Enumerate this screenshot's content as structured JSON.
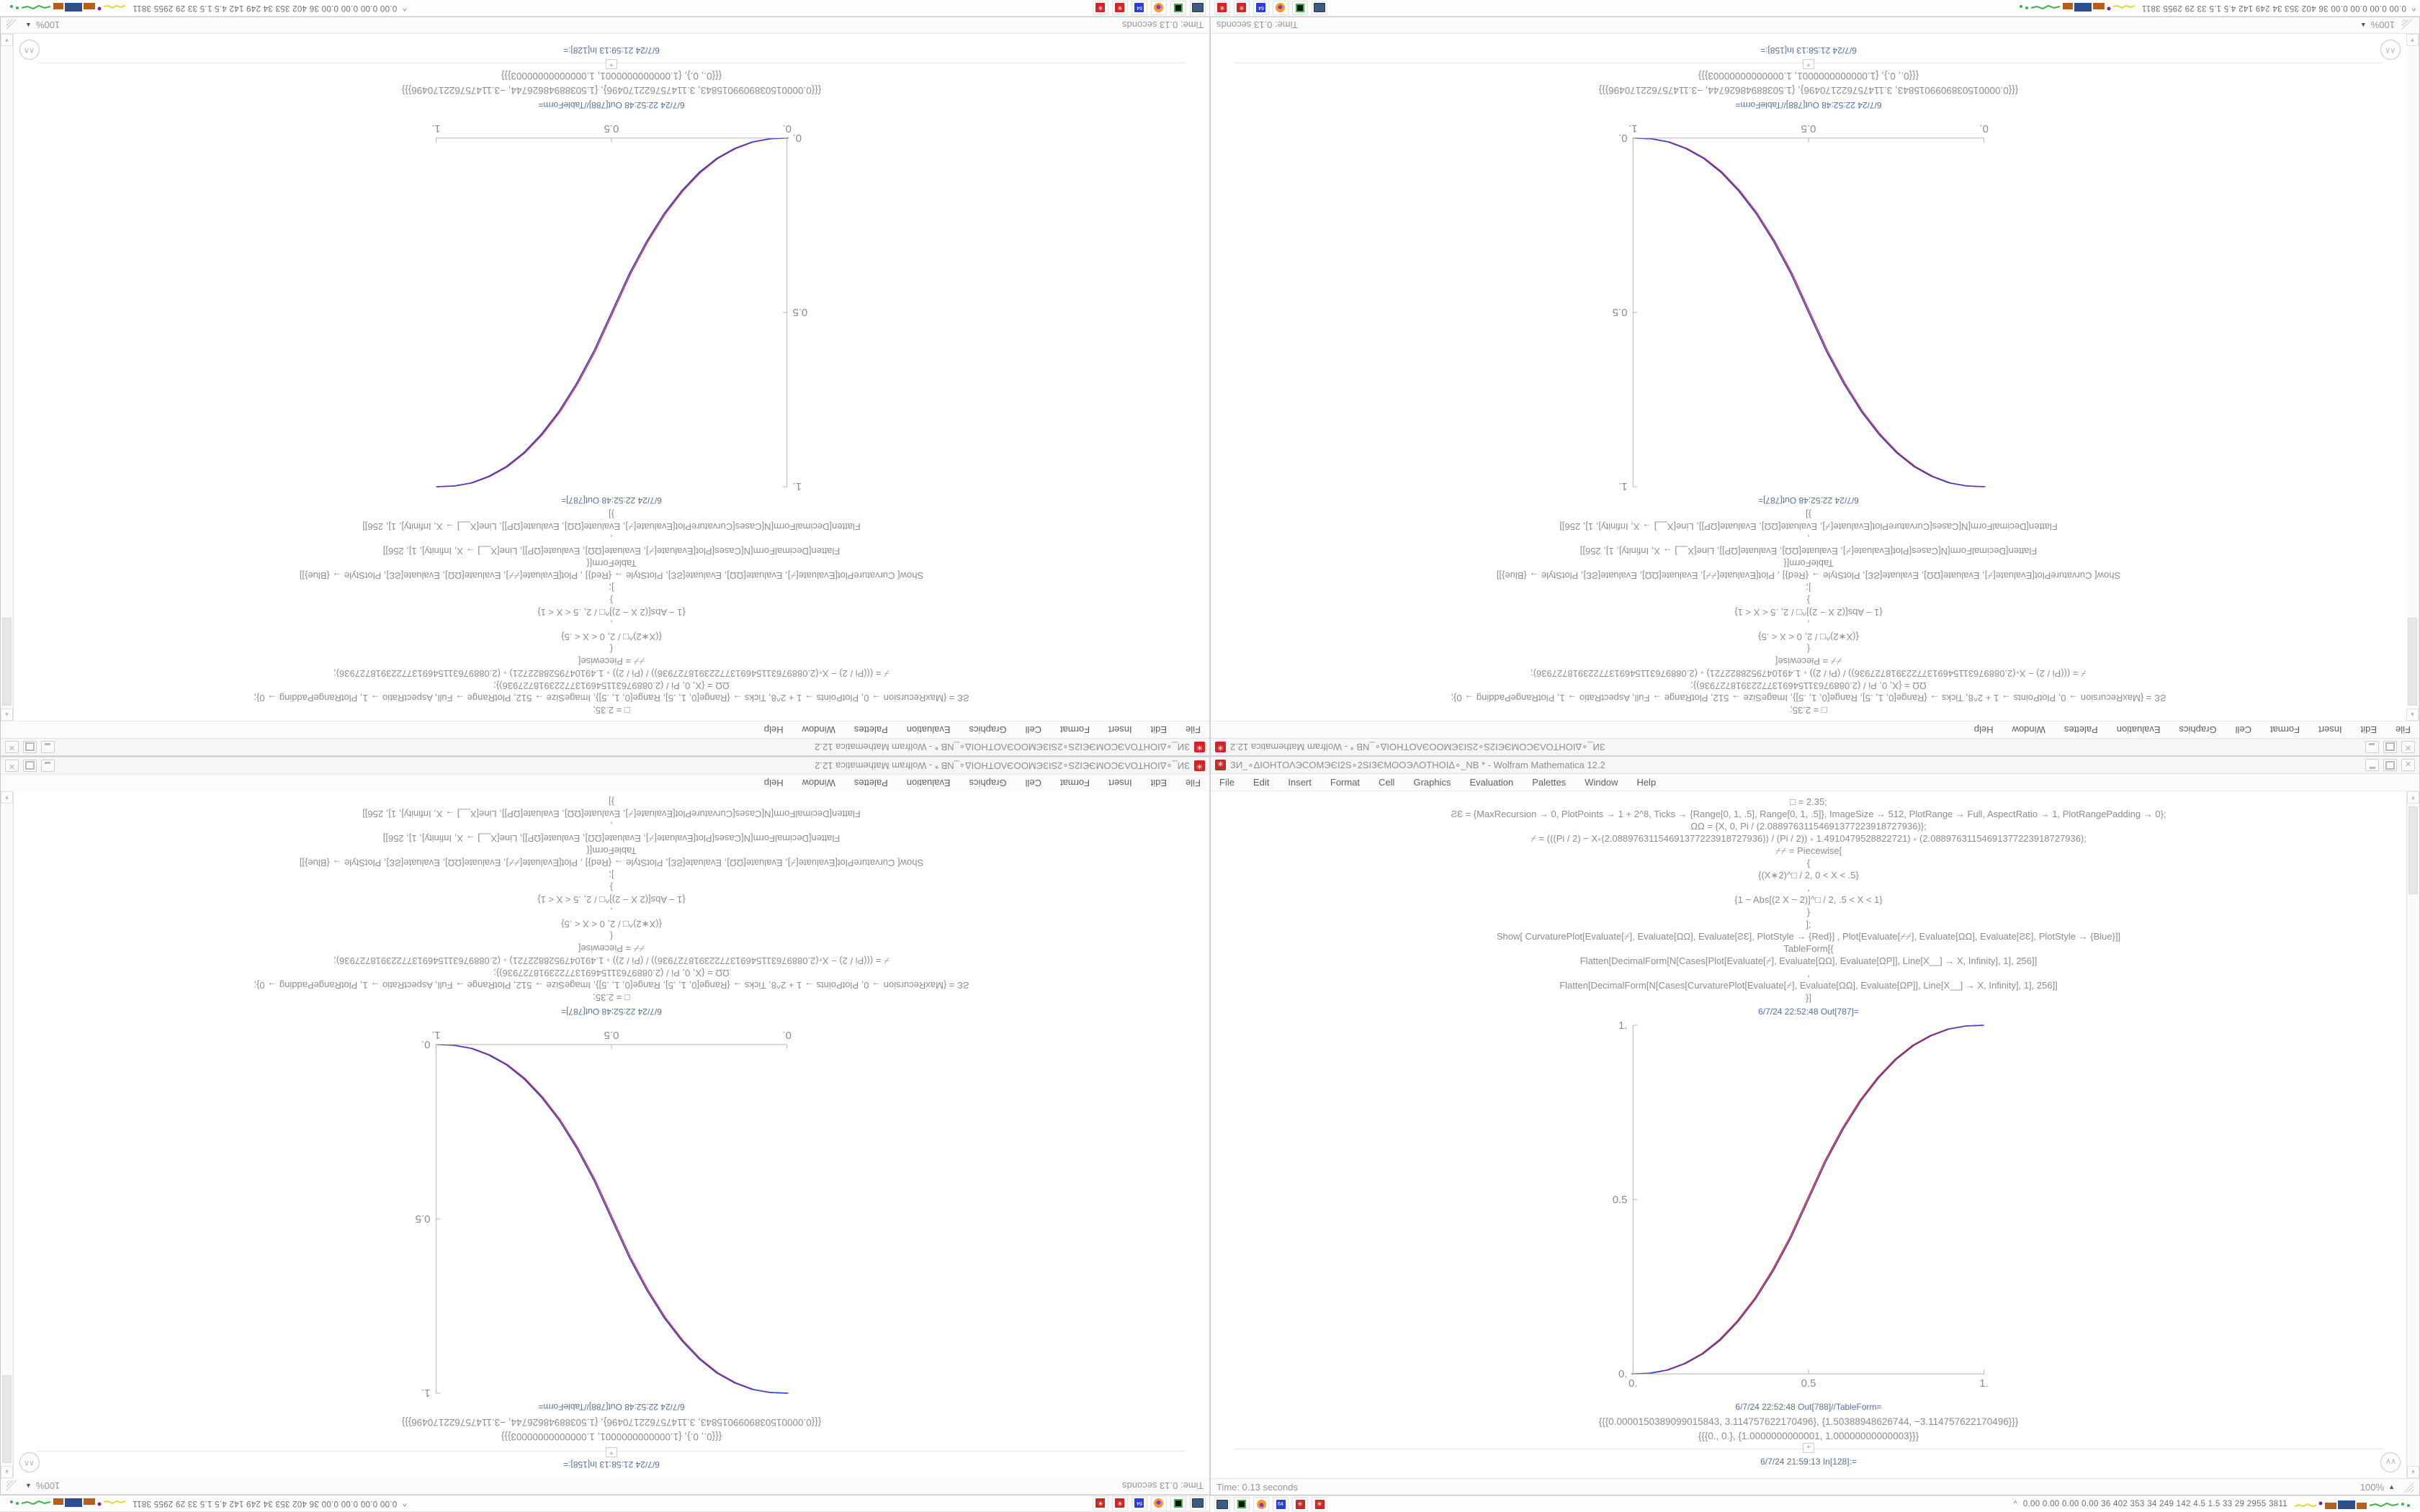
{
  "window": {
    "title": "ЗИ_∘ΔΙΟΗΤΟΛЭCOMЭЄІ2S∘2SІЗЄMOOЭΛΟΤΗΟΙΔ∘_NB * - Wolfram Mathematica 12.2",
    "menu": [
      "File",
      "Edit",
      "Insert",
      "Format",
      "Cell",
      "Graphics",
      "Evaluation",
      "Palettes",
      "Window",
      "Help"
    ],
    "controls": {
      "minimize": "_",
      "maximize": "□",
      "close": "✕"
    },
    "status": {
      "time": "Time: 0.13 seconds",
      "zoom": "100%"
    }
  },
  "notebook": {
    "code_lines": [
      "□ = 2.35;",
      "ƧƐ = {MaxRecursion → 0, PlotPoints → 1 + 2^8, Ticks → {Range[0, 1, .5], Range[0, 1, .5]}, ImageSize → 512, PlotRange → Full, AspectRatio → 1, PlotRangePadding → 0};",
      "ΩΩ = {X, 0, Pi / (2.08897631154691377223918727936)};",
      "⌿ = (((Pi / 2) − X∗(2.08897631154691377223918727936)) / (Pi / 2)) ∗ 1.4910479528822721) ∗ (2.08897631154691377223918727936);",
      "⌿⌿ = Piecewise[",
      "{",
      "{(X∗2)^□ / 2, 0 < X < .5}",
      ",",
      "{1 − Abs[(2 X − 2)]^□ / 2, .5 < X < 1}",
      "}",
      "];",
      "Show[  CurvaturePlot[Evaluate[⌿], Evaluate[ΩΩ], Evaluate[ƧƐ], PlotStyle → {Red}]  ,  Plot[Evaluate[⌿⌿], Evaluate[ΩΩ], Evaluate[ƧƐ], PlotStyle → {Blue}]]",
      "TableForm[{",
      "Flatten[DecimalForm[N[Cases[Plot[Evaluate[⌿], Evaluate[ΩΩ], Evaluate[ΩΡ]], Line[X__] → X, Infinity], 1], 256]]",
      ",",
      "Flatten[DecimalForm[N[Cases[CurvaturePlot[Evaluate[⌿], Evaluate[ΩΩ], Evaluate[ΩΡ]], Line[X__] → X, Infinity], 1], 256]]",
      "}]"
    ],
    "out_plot_label": "6/7/24 22:52:48 Out[787]=",
    "out_table_label": "6/7/24 22:52:48 Out[788]//TableForm=",
    "table_rows": [
      "{{{0.0000150389099015843, 3.114757622170496}, {1.50388948626744, −3.114757622170496}}}",
      "{{{0., 0.}, {1.0000000000001, 1.00000000000003}}}"
    ],
    "insert_plus": "+"
  },
  "taskbar": {
    "launchers": [
      "display-icon",
      "terminal-icon",
      "firefox-icon",
      "floppy64-icon",
      "mathematica-red-icon",
      "mathematica-red-icon"
    ],
    "floppy_label": "64",
    "mathematica_glyph": "✳",
    "tray": {
      "chevron": "^",
      "stats": "0.00 0.00 0.00 0.00   36   402   353   34   249   142   4.5   1.5   33   29   2955 3811"
    }
  },
  "chart_data": {
    "type": "line",
    "title": "Out[787]= sigmoid blend, CurvaturePlot (red) overlapping Plot (blue)",
    "xlabel": "",
    "ylabel": "",
    "xlim": [
      0,
      1
    ],
    "ylim": [
      0,
      1
    ],
    "grid": false,
    "legend_position": "none",
    "xticks": [
      "0.",
      "0.5",
      "1."
    ],
    "yticks_top_to_bottom": [
      "1.",
      "0.5",
      "0."
    ],
    "x": [
      0,
      0.05,
      0.1,
      0.15,
      0.2,
      0.25,
      0.3,
      0.35,
      0.4,
      0.45,
      0.5,
      0.55,
      0.6,
      0.65,
      0.7,
      0.75,
      0.8,
      0.85,
      0.9,
      0.95,
      1
    ],
    "y_increasing": [
      0,
      0.002,
      0.011,
      0.03,
      0.058,
      0.098,
      0.151,
      0.216,
      0.296,
      0.39,
      0.5,
      0.61,
      0.704,
      0.784,
      0.849,
      0.902,
      0.942,
      0.97,
      0.989,
      0.998,
      1
    ],
    "y_decreasing": [
      1,
      0.998,
      0.989,
      0.97,
      0.942,
      0.902,
      0.849,
      0.784,
      0.704,
      0.61,
      0.5,
      0.39,
      0.296,
      0.216,
      0.151,
      0.098,
      0.058,
      0.03,
      0.011,
      0.002,
      0
    ],
    "series": [
      {
        "name": "CurvaturePlot",
        "color": "#d62b2b"
      },
      {
        "name": "Plot",
        "color": "#3a3ad0"
      }
    ]
  },
  "quadrants": [
    {
      "name": "top-left",
      "rotated": true,
      "mirror_h": false,
      "flip_v": false,
      "curve": "inc",
      "in_label": "6/7/24 21:59:13 In[128]:="
    },
    {
      "name": "top-right",
      "rotated": true,
      "mirror_h": true,
      "flip_v": false,
      "curve": "dec",
      "in_label": "6/7/24 21:58:13 In[158]:="
    },
    {
      "name": "bottom-left",
      "rotated": true,
      "mirror_h": false,
      "flip_v": true,
      "curve": "dec",
      "in_label": "6/7/24 21:58:13 In[158]:="
    },
    {
      "name": "bottom-right",
      "rotated": false,
      "mirror_h": false,
      "flip_v": false,
      "curve": "inc",
      "in_label": "6/7/24 21:59:13 In[128]:="
    }
  ],
  "colors": {
    "app_icon_red": "#cc2626",
    "curve_red": "#d62b2b",
    "curve_blue": "#3a3ad0",
    "cell_label_blue": "#54709c",
    "axis_gray": "#b5b5b5"
  }
}
